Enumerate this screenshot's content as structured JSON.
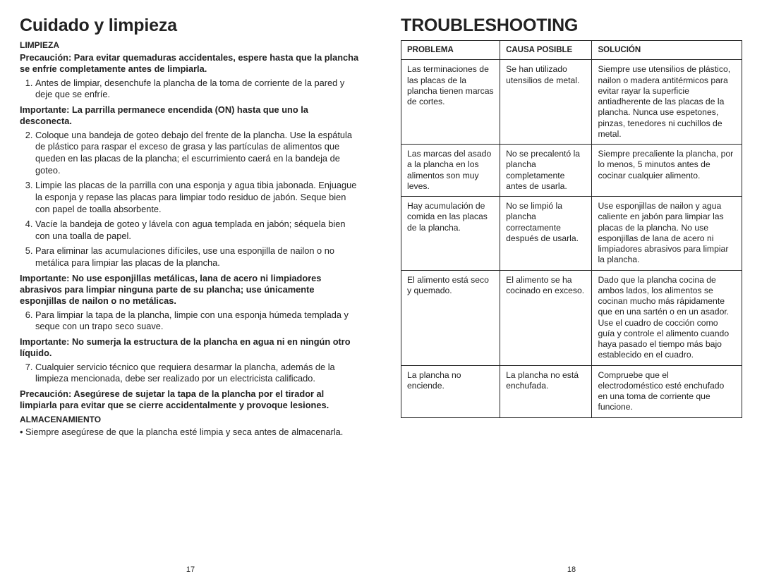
{
  "left": {
    "title": "Cuidado y limpieza",
    "limpieza_head": "LIMPIEZA",
    "precaucion": "Precaución: Para evitar quemaduras accidentales, espere hasta que la plancha se enfríe completamente antes de limpiarla.",
    "step1": "Antes de limpiar, desenchufe la plancha de la toma de corriente de la pared y deje que se enfríe.",
    "imp1": "Importante: La parrilla permanece encendida (ON) hasta que uno la desconecta.",
    "step2": "Coloque una bandeja de goteo debajo del frente de la plancha. Use la espátula de plástico para raspar el exceso de grasa y las partículas de alimentos que queden en las placas de la plancha; el escurrimiento caerá en la bandeja de goteo.",
    "step3": "Limpie las placas de la parrilla con una esponja y agua tibia jabonada. Enjuague la esponja y repase las placas para limpiar todo residuo de jabón. Seque bien con papel de toalla absorbente.",
    "step4": "Vacíe la bandeja de goteo y lávela con agua templada en jabón; séquela bien con una toalla de papel.",
    "step5": "Para eliminar las acumulaciones difíciles, use una esponjilla de nailon o no metálica para limpiar las placas de la plancha.",
    "imp2": "Importante: No use esponjillas metálicas, lana de acero ni limpiadores abrasivos para limpiar ninguna parte de su plancha; use únicamente esponjillas de nailon o no metálicas.",
    "step6": "Para limpiar la tapa de la plancha, limpie con una esponja húmeda templada y seque con un trapo seco suave.",
    "imp3": "Importante: No sumerja la estructura de la plancha en agua ni en ningún otro líquido.",
    "step7": "Cualquier servicio técnico que requiera desarmar la plancha, además de la limpieza mencionada, debe ser realizado por un electricista calificado.",
    "prec2": "Precaución: Asegúrese de sujetar la tapa de la plancha por el tirador al limpiarla para evitar que se cierre accidentalmente y provoque lesiones.",
    "alm_head": "ALMACENAMIENTO",
    "alm_bullet": "Siempre asegúrese de que la plancha esté limpia y seca antes de almacenarla.",
    "pagenum": "17"
  },
  "right": {
    "title": "TROUBLESHOOTING",
    "h_problema": "Problema",
    "h_causa": "Causa Posible",
    "h_solucion": "Solución",
    "rows": [
      {
        "p": "Las terminaciones de las placas de la plancha tienen marcas de cortes.",
        "c": "Se han utilizado utensilios de metal.",
        "s": "Siempre use utensilios de plástico, nailon o madera antitérmicos para evitar rayar la superficie antiadherente de las placas de la plancha. Nunca use espetones, pinzas, tenedores ni cuchillos de metal."
      },
      {
        "p": "Las marcas del asado a la plancha en los alimentos son muy leves.",
        "c": "No se precalentó la plancha completamente antes de usarla.",
        "s": "Siempre precaliente la plancha, por lo menos, 5 minutos antes de cocinar cualquier alimento."
      },
      {
        "p": "Hay acumulación de comida en las placas de la plancha.",
        "c": "No se limpió la plancha correctamente después de usarla.",
        "s": "Use esponjillas de nailon y agua caliente en jabón para limpiar las placas de la plancha. No use esponjillas de lana de acero ni limpiadores abrasivos para limpiar la plancha."
      },
      {
        "p": "El alimento está seco y quemado.",
        "c": "El alimento se ha cocinado en exceso.",
        "s": "Dado que la plancha cocina de ambos lados, los alimentos se cocinan mucho más rápidamente que en una sartén o en un asador. Use el cuadro de cocción como guía y controle el alimento cuando haya pasado el tiempo más bajo establecido en el cuadro."
      },
      {
        "p": "La plancha no enciende.",
        "c": "La plancha no está enchufada.",
        "s": "Compruebe que el electrodoméstico esté enchufado en una toma de corriente que funcione."
      }
    ],
    "pagenum": "18"
  }
}
